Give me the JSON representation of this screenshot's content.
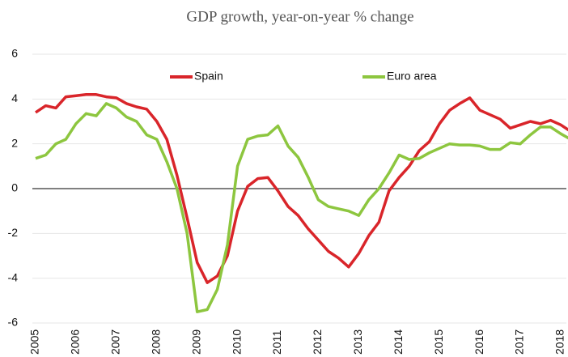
{
  "chart_data": {
    "type": "line",
    "title": "GDP growth, year-on-year % change",
    "categories": [
      "2005",
      null,
      null,
      null,
      "2006",
      null,
      null,
      null,
      "2007",
      null,
      null,
      null,
      "2008",
      null,
      null,
      null,
      "2009",
      null,
      null,
      null,
      "2010",
      null,
      null,
      null,
      "2011",
      null,
      null,
      null,
      "2012",
      null,
      null,
      null,
      "2013",
      null,
      null,
      null,
      "2014",
      null,
      null,
      null,
      "2015",
      null,
      null,
      null,
      "2016",
      null,
      null,
      null,
      "2017",
      null,
      null,
      null,
      "2018",
      null
    ],
    "series": [
      {
        "name": "Spain",
        "color": "#d9252a",
        "values": [
          3.4,
          3.7,
          3.6,
          4.1,
          4.15,
          4.2,
          4.2,
          4.1,
          4.05,
          3.8,
          3.65,
          3.55,
          3.0,
          2.2,
          0.6,
          -1.3,
          -3.3,
          -4.2,
          -3.9,
          -3.0,
          -1.0,
          0.1,
          0.45,
          0.5,
          -0.1,
          -0.8,
          -1.2,
          -1.8,
          -2.3,
          -2.8,
          -3.1,
          -3.5,
          -2.9,
          -2.1,
          -1.5,
          -0.1,
          0.5,
          1.0,
          1.7,
          2.1,
          2.9,
          3.5,
          3.8,
          4.05,
          3.5,
          3.3,
          3.1,
          2.7,
          2.85,
          3.0,
          2.9,
          3.05,
          2.85,
          2.55
        ]
      },
      {
        "name": "Euro area",
        "color": "#8dc63f",
        "values": [
          1.35,
          1.5,
          2.0,
          2.2,
          2.9,
          3.35,
          3.25,
          3.8,
          3.6,
          3.2,
          3.0,
          2.4,
          2.2,
          1.2,
          0.0,
          -2.0,
          -5.5,
          -5.4,
          -4.5,
          -2.5,
          1.0,
          2.2,
          2.35,
          2.4,
          2.8,
          1.9,
          1.4,
          0.5,
          -0.5,
          -0.8,
          -0.9,
          -1.0,
          -1.2,
          -0.5,
          0.0,
          0.7,
          1.5,
          1.3,
          1.35,
          1.6,
          1.8,
          2.0,
          1.95,
          1.95,
          1.9,
          1.75,
          1.75,
          2.05,
          2.0,
          2.4,
          2.75,
          2.75,
          2.45,
          2.2
        ]
      }
    ],
    "ylim": [
      -6,
      6
    ],
    "yticks": [
      -6,
      -4,
      -2,
      0,
      2,
      4,
      6
    ],
    "grid": true
  }
}
